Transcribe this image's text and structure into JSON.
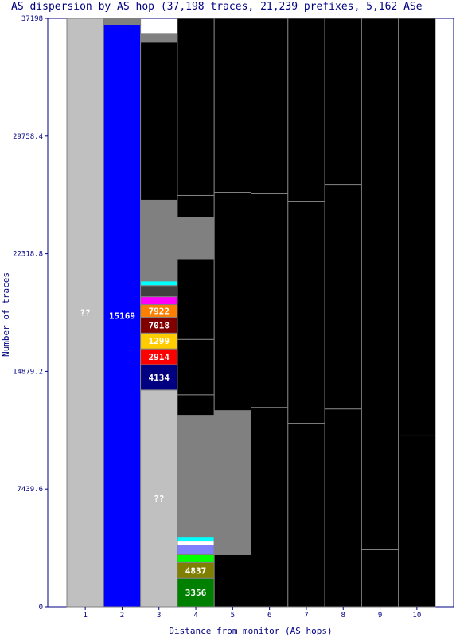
{
  "chart_data": {
    "type": "bar",
    "title": "AS dispersion by AS hop (37,198 traces, 21,239 prefixes, 5,162 ASe",
    "xlabel": "Distance from monitor (AS hops)",
    "ylabel": "Number of traces",
    "categories": [
      "1",
      "2",
      "3",
      "4",
      "5",
      "6",
      "7",
      "8",
      "9",
      "10"
    ],
    "y_ticks": [
      "0",
      "7439.6",
      "14879.2",
      "22318.8",
      "29758.4",
      "37198"
    ],
    "ylim": [
      0,
      37198
    ],
    "colors": {
      "unknown": "#c0c0c0",
      "blue": "#0000ff",
      "black": "#000000",
      "dense_gray": "#808080",
      "frame": "#000080"
    },
    "columns": [
      {
        "hop": "1",
        "segments": [
          {
            "label": "??",
            "value": 37198,
            "color": "#c0c0c0",
            "text_color": "#ffffff"
          }
        ]
      },
      {
        "hop": "2",
        "segments": [
          {
            "label": "15169",
            "value": 36800,
            "color": "#0000ff",
            "text_color": "#ffffff"
          },
          {
            "label": "",
            "value": 398,
            "color": "#808080"
          }
        ]
      },
      {
        "hop": "3",
        "segments": [
          {
            "label": "??",
            "value": 13700,
            "color": "#c0c0c0",
            "text_color": "#ffffff"
          },
          {
            "label": "4134",
            "value": 1600,
            "color": "#000080",
            "text_color": "#ffffff"
          },
          {
            "label": "2914",
            "value": 1000,
            "color": "#ff0000",
            "text_color": "#ffffff"
          },
          {
            "label": "1299",
            "value": 1000,
            "color": "#ffcc00",
            "text_color": "#ffffff"
          },
          {
            "label": "7018",
            "value": 1000,
            "color": "#800000",
            "text_color": "#ffffff"
          },
          {
            "label": "7922",
            "value": 800,
            "color": "#ff8000",
            "text_color": "#ffffff"
          },
          {
            "label": "",
            "value": 500,
            "color": "#ff00ff"
          },
          {
            "label": "",
            "value": 700,
            "color": "#404040"
          },
          {
            "label": "",
            "value": 300,
            "color": "#00ffff"
          },
          {
            "label": "",
            "value": 1600,
            "color": "#808080"
          },
          {
            "label": "",
            "value": 3500,
            "color": "#808080"
          },
          {
            "label": "",
            "value": 9998,
            "color": "#000000"
          },
          {
            "label": "",
            "value": 500,
            "color": "#808080"
          }
        ]
      },
      {
        "hop": "4",
        "segments": [
          {
            "label": "3356",
            "value": 1800,
            "color": "#008000",
            "text_color": "#ffffff"
          },
          {
            "label": "4837",
            "value": 1000,
            "color": "#808000",
            "text_color": "#ffffff"
          },
          {
            "label": "",
            "value": 500,
            "color": "#00ff00"
          },
          {
            "label": "",
            "value": 600,
            "color": "#8080ff"
          },
          {
            "label": "",
            "value": 250,
            "color": "#ffffff"
          },
          {
            "label": "",
            "value": 250,
            "color": "#00ffff"
          },
          {
            "label": "",
            "value": 7700,
            "color": "#808080"
          },
          {
            "label": "",
            "value": 1300,
            "color": "#000000"
          },
          {
            "label": "",
            "value": 3500,
            "color": "#000000"
          },
          {
            "label": "",
            "value": 5100,
            "color": "#000000"
          },
          {
            "label": "",
            "value": 2600,
            "color": "#808080"
          },
          {
            "label": "",
            "value": 1400,
            "color": "#000000"
          },
          {
            "label": "",
            "value": 11198,
            "color": "#000000"
          }
        ]
      },
      {
        "hop": "5",
        "segments": [
          {
            "label": "",
            "value": 3300,
            "color": "#000000"
          },
          {
            "label": "",
            "value": 9100,
            "color": "#808080"
          },
          {
            "label": "",
            "value": 13800,
            "color": "#000000"
          },
          {
            "label": "",
            "value": 10998,
            "color": "#000000"
          }
        ]
      },
      {
        "hop": "6",
        "segments": [
          {
            "label": "",
            "value": 12600,
            "color": "#000000"
          },
          {
            "label": "",
            "value": 13500,
            "color": "#000000"
          },
          {
            "label": "",
            "value": 11098,
            "color": "#000000"
          }
        ]
      },
      {
        "hop": "7",
        "segments": [
          {
            "label": "",
            "value": 11600,
            "color": "#000000"
          },
          {
            "label": "",
            "value": 14000,
            "color": "#000000"
          },
          {
            "label": "",
            "value": 11598,
            "color": "#000000"
          }
        ]
      },
      {
        "hop": "8",
        "segments": [
          {
            "label": "",
            "value": 12500,
            "color": "#000000"
          },
          {
            "label": "",
            "value": 14200,
            "color": "#000000"
          },
          {
            "label": "",
            "value": 10498,
            "color": "#000000"
          }
        ]
      },
      {
        "hop": "9",
        "segments": [
          {
            "label": "",
            "value": 3600,
            "color": "#000000"
          },
          {
            "label": "",
            "value": 33598,
            "color": "#000000"
          }
        ]
      },
      {
        "hop": "10",
        "segments": [
          {
            "label": "",
            "value": 10800,
            "color": "#000000"
          },
          {
            "label": "",
            "value": 26398,
            "color": "#000000"
          }
        ]
      }
    ],
    "grid": false,
    "legend": "none"
  }
}
